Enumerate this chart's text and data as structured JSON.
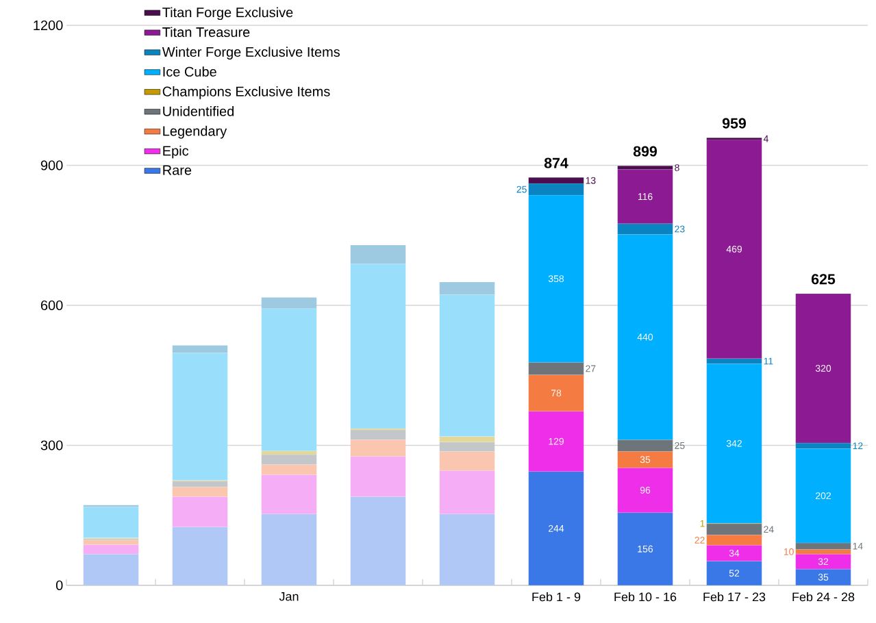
{
  "chart_data": {
    "type": "bar",
    "stacked": true,
    "categories": [
      null,
      null,
      "Jan",
      null,
      null,
      "Feb 1 - 9",
      "Feb 10 - 16",
      "Feb 17 - 23",
      "Feb 24 - 28"
    ],
    "ylim": [
      0,
      1200
    ],
    "yticks": [
      0,
      300,
      600,
      900,
      1200
    ],
    "grid": "y",
    "legend": "top left",
    "totals": [
      null,
      null,
      null,
      null,
      null,
      "874",
      "899",
      "959",
      "625"
    ],
    "series": [
      {
        "name": "Rare",
        "color": "#3b78e7",
        "colors": [
          "#b0c8f5",
          "#b0c8f5",
          "#b0c8f5",
          "#b0c8f5",
          "#b0c8f5",
          "#3b78e7",
          "#3b78e7",
          "#3b78e7",
          "#3b78e7"
        ],
        "values": [
          67,
          125,
          153,
          190,
          153,
          244,
          156,
          52,
          35
        ],
        "value_labels": [
          null,
          null,
          null,
          null,
          null,
          "244",
          "156",
          "52",
          "35"
        ]
      },
      {
        "name": "Epic",
        "color": "#ee2ee8",
        "colors": [
          "#f5adf6",
          "#f5adf6",
          "#f5adf6",
          "#f5adf6",
          "#f5adf6",
          "#ee2ee8",
          "#ee2ee8",
          "#ee2ee8",
          "#ee2ee8"
        ],
        "values": [
          20,
          65,
          84,
          86,
          93,
          129,
          96,
          34,
          32
        ],
        "value_labels": [
          null,
          null,
          null,
          null,
          null,
          "129",
          "96",
          "34",
          "32"
        ]
      },
      {
        "name": "Legendary",
        "color": "#f47b42",
        "colors": [
          "#fac6b0",
          "#fac6b0",
          "#fac6b0",
          "#fac6b0",
          "#fac6b0",
          "#f47b42",
          "#f47b42",
          "#f47b42",
          "#f47b42"
        ],
        "values": [
          10,
          21,
          22,
          36,
          41,
          78,
          35,
          22,
          10
        ],
        "value_labels": [
          null,
          null,
          null,
          null,
          null,
          "78",
          "35",
          "22",
          "10"
        ]
      },
      {
        "name": "Unidentified",
        "color": "#6d757b",
        "colors": [
          "#c4c7ca",
          "#c4c7ca",
          "#c4c7ca",
          "#c4c7ca",
          "#c4c7ca",
          "#6d757b",
          "#6d757b",
          "#6d757b",
          "#6d757b"
        ],
        "values": [
          3,
          12,
          21,
          21,
          20,
          27,
          25,
          24,
          14
        ],
        "value_labels": [
          null,
          null,
          null,
          null,
          null,
          "27",
          "25",
          "24",
          "14"
        ]
      },
      {
        "name": "Champions Exclusive Items",
        "color": "#c49a00",
        "colors": [
          "#e4d79a",
          "#e4d79a",
          "#e4d79a",
          "#e4d79a",
          "#e4d79a",
          "#c49a00",
          "#c49a00",
          "#c49a00",
          "#c49a00"
        ],
        "values": [
          2,
          2,
          8,
          3,
          12,
          null,
          null,
          1,
          null
        ],
        "value_labels": [
          null,
          null,
          null,
          null,
          null,
          null,
          null,
          "1",
          null
        ]
      },
      {
        "name": "Ice Cube",
        "color": "#00b0ff",
        "colors": [
          "#99dffc",
          "#99dffc",
          "#99dffc",
          "#99dffc",
          "#99dffc",
          "#00b0ff",
          "#00b0ff",
          "#00b0ff",
          "#00b0ff"
        ],
        "values": [
          66,
          273,
          305,
          353,
          304,
          358,
          440,
          342,
          202
        ],
        "value_labels": [
          null,
          null,
          null,
          null,
          null,
          "358",
          "440",
          "342",
          "202"
        ]
      },
      {
        "name": "Winter Forge Exclusive Items",
        "color": "#0a84c1",
        "colors": [
          "#9dcae1",
          "#9dcae1",
          "#9dcae1",
          "#9dcae1",
          "#9dcae1",
          "#0a84c1",
          "#0a84c1",
          "#0a84c1",
          "#0a84c1"
        ],
        "values": [
          4,
          16,
          24,
          40,
          27,
          25,
          23,
          11,
          12
        ],
        "value_labels": [
          null,
          null,
          null,
          null,
          null,
          "25",
          "23",
          "11",
          "12"
        ]
      },
      {
        "name": "Titan Treasure",
        "color": "#8b1a93",
        "colors": [
          "#8b1a93",
          "#8b1a93",
          "#8b1a93",
          "#8b1a93",
          "#8b1a93",
          "#8b1a93",
          "#8b1a93",
          "#8b1a93",
          "#8b1a93"
        ],
        "values": [
          null,
          null,
          null,
          null,
          null,
          null,
          116,
          469,
          320
        ],
        "value_labels": [
          null,
          null,
          null,
          null,
          null,
          null,
          "116",
          "469",
          "320"
        ]
      },
      {
        "name": "Titan Forge Exclusive",
        "color": "#4a0e4e",
        "colors": [
          "#4a0e4e",
          "#4a0e4e",
          "#4a0e4e",
          "#4a0e4e",
          "#4a0e4e",
          "#4a0e4e",
          "#4a0e4e",
          "#4a0e4e",
          "#4a0e4e"
        ],
        "values": [
          null,
          null,
          null,
          null,
          null,
          13,
          8,
          4,
          null
        ],
        "value_labels": [
          null,
          null,
          null,
          null,
          null,
          "13",
          "8",
          "4",
          null
        ]
      }
    ]
  }
}
